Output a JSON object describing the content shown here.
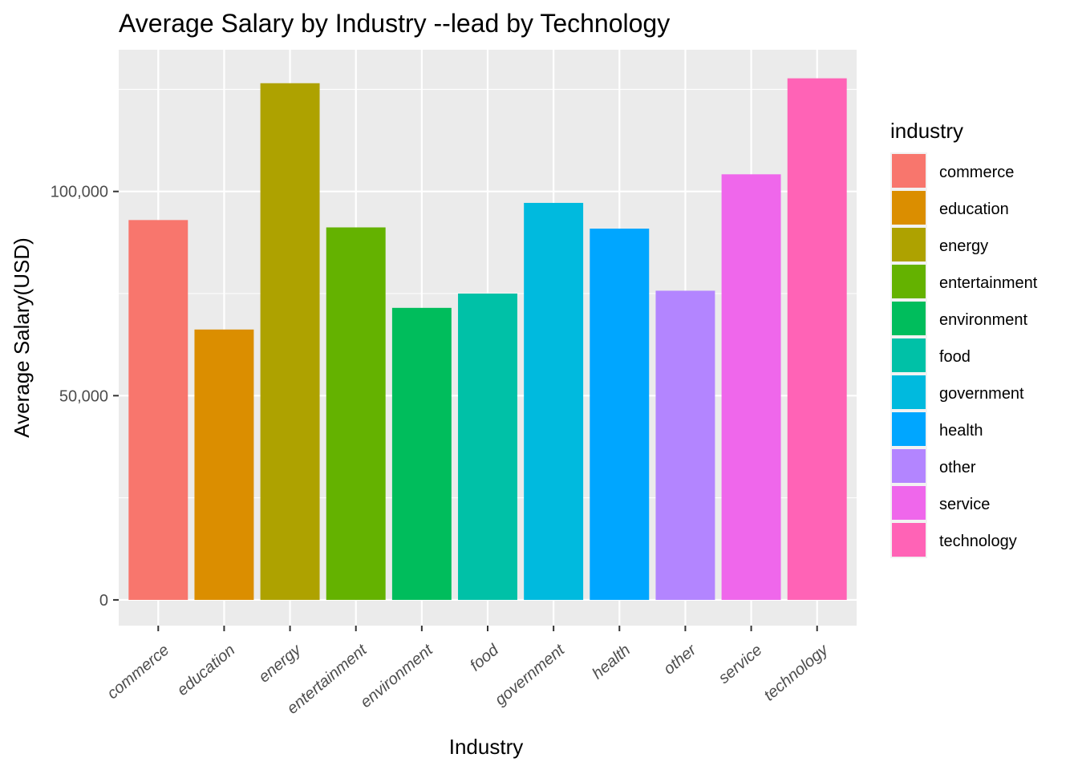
{
  "chart_data": {
    "type": "bar",
    "title": "Average Salary by Industry --lead by Technology",
    "xlabel": "Industry",
    "ylabel": "Average Salary(USD)",
    "categories": [
      "commerce",
      "education",
      "energy",
      "entertainment",
      "environment",
      "food",
      "government",
      "health",
      "other",
      "service",
      "technology"
    ],
    "values": [
      93000,
      66200,
      126500,
      91200,
      71500,
      75000,
      97200,
      90900,
      75700,
      104200,
      127700
    ],
    "colors": [
      "#F8766D",
      "#DB8E00",
      "#AEA200",
      "#64B200",
      "#00BD5C",
      "#00C1A7",
      "#00BADE",
      "#00A6FF",
      "#B385FF",
      "#EF67EB",
      "#FF63B6"
    ],
    "ylim": [
      -6300,
      134700
    ],
    "yticks": [
      0,
      50000,
      100000
    ],
    "ytick_labels": [
      "0",
      "50,000",
      "100,000"
    ],
    "grid": true,
    "legend": {
      "title": "industry",
      "position": "right",
      "entries": [
        "commerce",
        "education",
        "energy",
        "entertainment",
        "environment",
        "food",
        "government",
        "health",
        "other",
        "service",
        "technology"
      ]
    }
  }
}
